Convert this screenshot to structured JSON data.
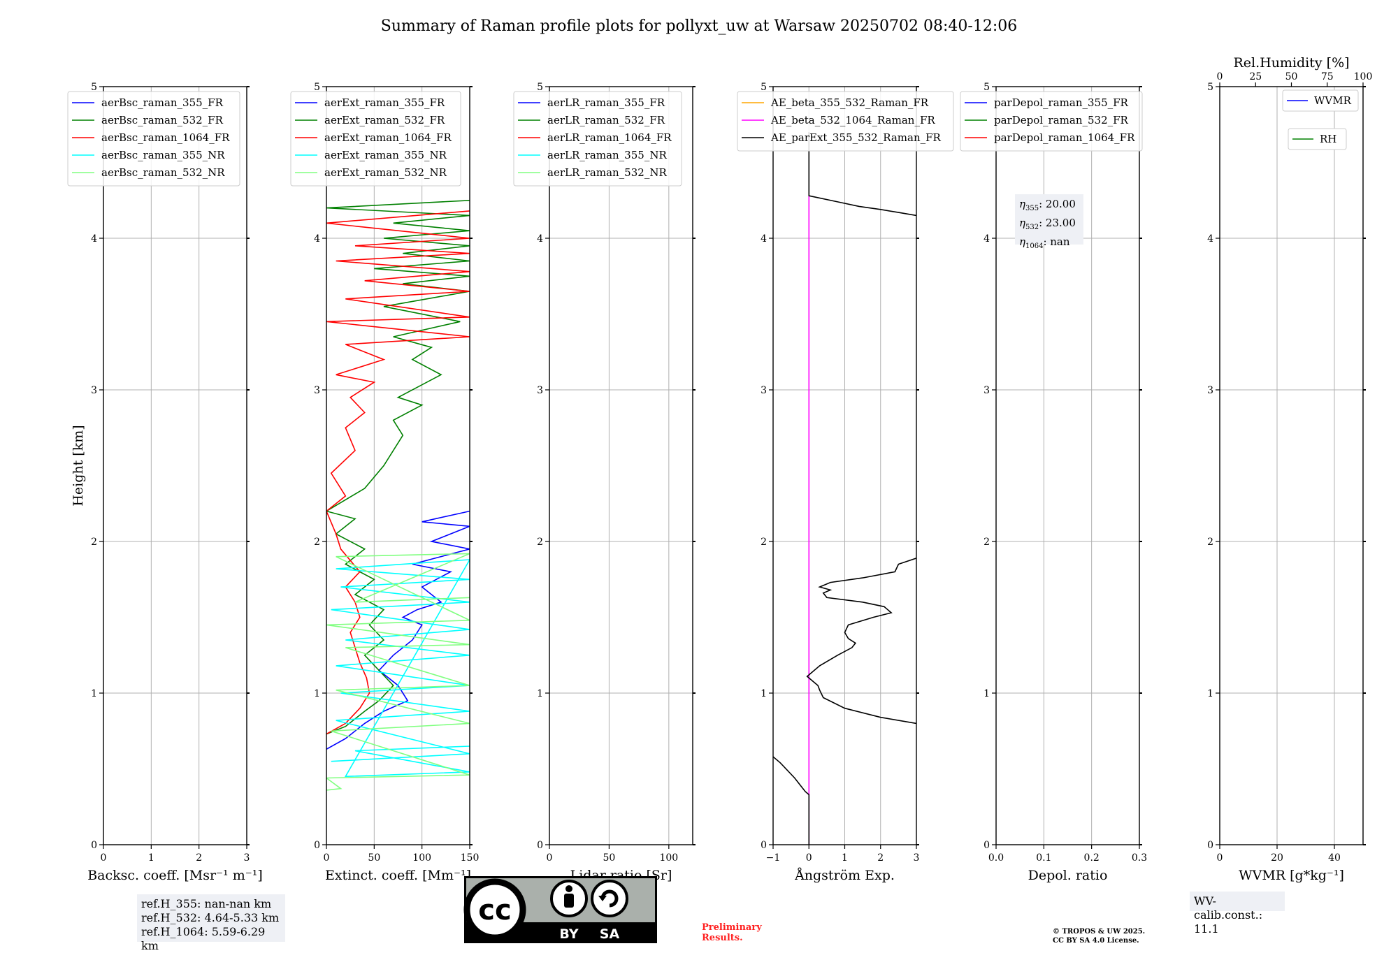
{
  "title": "Summary of Raman profile plots for pollyxt_uw at Warsaw 20250702 08:40-12:06",
  "chart_data": [
    {
      "type": "line",
      "xlabel": "Backsc. coeff. [Msr⁻¹ m⁻¹]",
      "ylabel": "Height [km]",
      "xlim": [
        0,
        3
      ],
      "ylim": [
        0,
        5
      ],
      "xticks": [
        "0",
        "1",
        "2",
        "3"
      ],
      "yticks": [
        "0",
        "1",
        "2",
        "3",
        "4",
        "5"
      ],
      "grid": true,
      "legend_position": "top-left",
      "legend": [
        {
          "name": "aerBsc_raman_355_FR",
          "color": "#0000ff"
        },
        {
          "name": "aerBsc_raman_532_FR",
          "color": "#008000"
        },
        {
          "name": "aerBsc_raman_1064_FR",
          "color": "#ff0000"
        },
        {
          "name": "aerBsc_raman_355_NR",
          "color": "#00ffff"
        },
        {
          "name": "aerBsc_raman_532_NR",
          "color": "#80ff80"
        }
      ],
      "series": []
    },
    {
      "type": "line",
      "xlabel": "Extinct. coeff. [Mm⁻¹]",
      "xlim": [
        0,
        150
      ],
      "ylim": [
        0,
        5
      ],
      "xticks": [
        "0",
        "50",
        "100",
        "150"
      ],
      "yticks": [
        "0",
        "1",
        "2",
        "3",
        "4",
        "5"
      ],
      "grid": true,
      "legend_position": "top-left",
      "legend": [
        {
          "name": "aerExt_raman_355_FR",
          "color": "#0000ff"
        },
        {
          "name": "aerExt_raman_532_FR",
          "color": "#008000"
        },
        {
          "name": "aerExt_raman_1064_FR",
          "color": "#ff0000"
        },
        {
          "name": "aerExt_raman_355_NR",
          "color": "#00ffff"
        },
        {
          "name": "aerExt_raman_532_NR",
          "color": "#80ff80"
        }
      ],
      "series": [
        {
          "name": "aerExt_raman_355_FR",
          "color": "#0000ff",
          "x": [
            0,
            20,
            40,
            60,
            85,
            75,
            55,
            70,
            90,
            100,
            80,
            95,
            120,
            100,
            130,
            90,
            150,
            110,
            150,
            100,
            150
          ],
          "y": [
            0.63,
            0.7,
            0.8,
            0.88,
            0.95,
            1.05,
            1.15,
            1.25,
            1.35,
            1.45,
            1.5,
            1.55,
            1.6,
            1.7,
            1.8,
            1.85,
            1.95,
            2.0,
            2.1,
            2.13,
            2.2
          ]
        },
        {
          "name": "aerExt_raman_532_FR",
          "color": "#008000",
          "x": [
            0,
            20,
            40,
            55,
            70,
            55,
            40,
            60,
            45,
            60,
            30,
            50,
            20,
            40,
            10,
            30,
            0,
            40,
            60,
            80,
            70,
            100,
            75,
            120,
            90,
            110,
            70,
            140,
            60,
            150,
            80,
            150,
            50,
            150,
            80,
            150,
            60,
            150,
            70,
            150,
            0,
            150
          ],
          "y": [
            0.73,
            0.78,
            0.88,
            0.95,
            1.05,
            1.15,
            1.25,
            1.35,
            1.45,
            1.55,
            1.65,
            1.75,
            1.85,
            1.95,
            2.05,
            2.15,
            2.2,
            2.35,
            2.5,
            2.7,
            2.8,
            2.9,
            2.95,
            3.1,
            3.2,
            3.28,
            3.35,
            3.45,
            3.55,
            3.65,
            3.7,
            3.75,
            3.8,
            3.85,
            3.9,
            3.95,
            4.0,
            4.05,
            4.1,
            4.15,
            4.2,
            4.25
          ]
        },
        {
          "name": "aerExt_raman_1064_FR",
          "color": "#ff0000",
          "x": [
            0,
            20,
            35,
            45,
            42,
            35,
            30,
            25,
            35,
            30,
            20,
            35,
            15,
            10,
            0,
            20,
            5,
            30,
            20,
            40,
            25,
            50,
            10,
            60,
            20,
            150,
            0,
            150,
            20,
            150,
            40,
            150,
            10,
            150,
            30,
            150,
            0,
            150
          ],
          "y": [
            0.73,
            0.8,
            0.9,
            1.0,
            1.1,
            1.2,
            1.3,
            1.4,
            1.5,
            1.6,
            1.7,
            1.8,
            1.95,
            2.05,
            2.2,
            2.3,
            2.45,
            2.6,
            2.75,
            2.85,
            2.95,
            3.05,
            3.1,
            3.2,
            3.3,
            3.35,
            3.45,
            3.48,
            3.6,
            3.65,
            3.72,
            3.78,
            3.85,
            3.9,
            3.95,
            4.0,
            4.1,
            4.18
          ]
        },
        {
          "name": "aerExt_raman_355_NR",
          "color": "#00ffff",
          "x": [
            5,
            150,
            10,
            150,
            15,
            150,
            10,
            150,
            20,
            150,
            5,
            150,
            15,
            150,
            10,
            150,
            20,
            150,
            30,
            150
          ],
          "y": [
            0.55,
            0.6,
            0.82,
            0.88,
            1.0,
            1.05,
            1.18,
            1.25,
            1.35,
            1.42,
            1.55,
            1.6,
            1.7,
            1.75,
            1.82,
            1.88,
            0.45,
            0.48,
            0.62,
            0.65
          ]
        },
        {
          "name": "aerExt_raman_532_NR",
          "color": "#80ff80",
          "x": [
            0,
            15,
            0,
            150,
            5,
            150,
            10,
            150,
            20,
            150,
            0,
            150,
            10,
            150,
            30,
            150
          ],
          "y": [
            0.36,
            0.37,
            0.44,
            0.46,
            0.75,
            0.8,
            1.02,
            1.05,
            1.3,
            1.32,
            1.45,
            1.48,
            1.9,
            1.92,
            1.6,
            1.63
          ]
        }
      ]
    },
    {
      "type": "line",
      "xlabel": "Lidar ratio [Sr]",
      "xlim": [
        0,
        120
      ],
      "ylim": [
        0,
        5
      ],
      "xticks": [
        "0",
        "50",
        "100"
      ],
      "yticks": [
        "0",
        "1",
        "2",
        "3",
        "4",
        "5"
      ],
      "grid": true,
      "legend_position": "top-left",
      "legend": [
        {
          "name": "aerLR_raman_355_FR",
          "color": "#0000ff"
        },
        {
          "name": "aerLR_raman_532_FR",
          "color": "#008000"
        },
        {
          "name": "aerLR_raman_1064_FR",
          "color": "#ff0000"
        },
        {
          "name": "aerLR_raman_355_NR",
          "color": "#00ffff"
        },
        {
          "name": "aerLR_raman_532_NR",
          "color": "#80ff80"
        }
      ],
      "series": []
    },
    {
      "type": "line",
      "xlabel": "Ångström Exp.",
      "xlim": [
        -1,
        3
      ],
      "ylim": [
        0,
        5
      ],
      "xticks": [
        "−1",
        "0",
        "1",
        "2",
        "3"
      ],
      "yticks": [
        "0",
        "1",
        "2",
        "3",
        "4",
        "5"
      ],
      "grid": true,
      "legend_position": "top-left",
      "legend": [
        {
          "name": "AE_beta_355_532_Raman_FR",
          "color": "#ffa500"
        },
        {
          "name": "AE_beta_532_1064_Raman_FR",
          "color": "#ff00ff"
        },
        {
          "name": "AE_parExt_355_532_Raman_FR",
          "color": "#000000"
        }
      ],
      "series": [
        {
          "name": "AE_beta_532_1064_Raman_FR",
          "color": "#ff00ff",
          "x": [
            0,
            0
          ],
          "y": [
            0,
            4.28
          ]
        },
        {
          "name": "AE_parExt_355_532_Raman_FR",
          "color": "#000000",
          "x": [
            0,
            0,
            0.8,
            1.4,
            2.0,
            2.5,
            3.0
          ],
          "y": [
            4.7,
            4.28,
            4.24,
            4.21,
            4.19,
            4.17,
            4.15
          ]
        },
        {
          "name": "AE_parExt_355_532_Raman_FR",
          "color": "#000000",
          "x": [
            0,
            0,
            -0.1,
            -0.4,
            -0.8,
            -1.0
          ],
          "y": [
            0,
            0.33,
            0.35,
            0.44,
            0.54,
            0.58
          ]
        },
        {
          "name": "AE_parExt_355_532_Raman_FR",
          "color": "#000000",
          "x": [
            3.0,
            2.0,
            1.0,
            0.4,
            0.3,
            0.25,
            0.1,
            -0.05,
            0.3,
            0.8,
            1.2,
            1.3,
            1.1,
            1.0,
            1.1,
            1.8,
            2.3,
            2.1,
            1.5,
            0.5,
            0.4,
            0.6,
            0.3,
            0.6,
            1.5,
            2.4,
            2.5,
            3.0
          ],
          "y": [
            0.8,
            0.84,
            0.9,
            0.97,
            1.02,
            1.05,
            1.08,
            1.11,
            1.18,
            1.25,
            1.3,
            1.33,
            1.36,
            1.4,
            1.45,
            1.5,
            1.53,
            1.57,
            1.6,
            1.63,
            1.66,
            1.68,
            1.7,
            1.73,
            1.76,
            1.8,
            1.85,
            1.89
          ]
        }
      ]
    },
    {
      "type": "line",
      "xlabel": "Depol. ratio",
      "xlim": [
        0,
        0.3
      ],
      "ylim": [
        0,
        5
      ],
      "xticks": [
        "0.0",
        "0.1",
        "0.2",
        "0.3"
      ],
      "yticks": [
        "0",
        "1",
        "2",
        "3",
        "4",
        "5"
      ],
      "grid": true,
      "legend_position": "top-left",
      "legend": [
        {
          "name": "parDepol_raman_355_FR",
          "color": "#0000ff"
        },
        {
          "name": "parDepol_raman_532_FR",
          "color": "#008000"
        },
        {
          "name": "parDepol_raman_1064_FR",
          "color": "#ff0000"
        }
      ],
      "series": []
    },
    {
      "type": "line",
      "xlabel": "WVMR [g*kg⁻¹]",
      "x2label": "Rel.Humidity [%]",
      "xlim": [
        0,
        50
      ],
      "x2lim": [
        0,
        100
      ],
      "ylim": [
        0,
        5
      ],
      "xticks": [
        "0",
        "20",
        "40"
      ],
      "x2ticks": [
        "0",
        "25",
        "50",
        "75",
        "100"
      ],
      "yticks": [
        "0",
        "1",
        "2",
        "3",
        "4",
        "5"
      ],
      "grid": true,
      "legend_position": "top-right",
      "legend": [
        {
          "name": "WVMR",
          "color": "#0000ff"
        },
        {
          "name": "RH",
          "color": "#008000"
        }
      ],
      "series": []
    }
  ],
  "eta_box": [
    {
      "sub": "355",
      "value": ": 20.00"
    },
    {
      "sub": "532",
      "value": ": 23.00"
    },
    {
      "sub": "1064",
      "value": ": nan"
    }
  ],
  "eta_symbol": "η",
  "ref_box": [
    "ref.H_355: nan-nan km",
    "ref.H_532: 4.64-5.33 km",
    "ref.H_1064: 5.59-6.29 km"
  ],
  "wv_calib": "WV-calib.const.: 11.1",
  "preliminary": [
    "Preliminary",
    "Results."
  ],
  "copyright": [
    "© TROPOS & UW 2025.",
    "CC BY SA 4.0 License."
  ],
  "license_badge": {
    "by": "BY",
    "sa": "SA",
    "cc": "cc"
  },
  "colors": {
    "grid": "#b0b0b0",
    "box_bg": "#eef0f5",
    "preliminary": "#ff2020"
  }
}
